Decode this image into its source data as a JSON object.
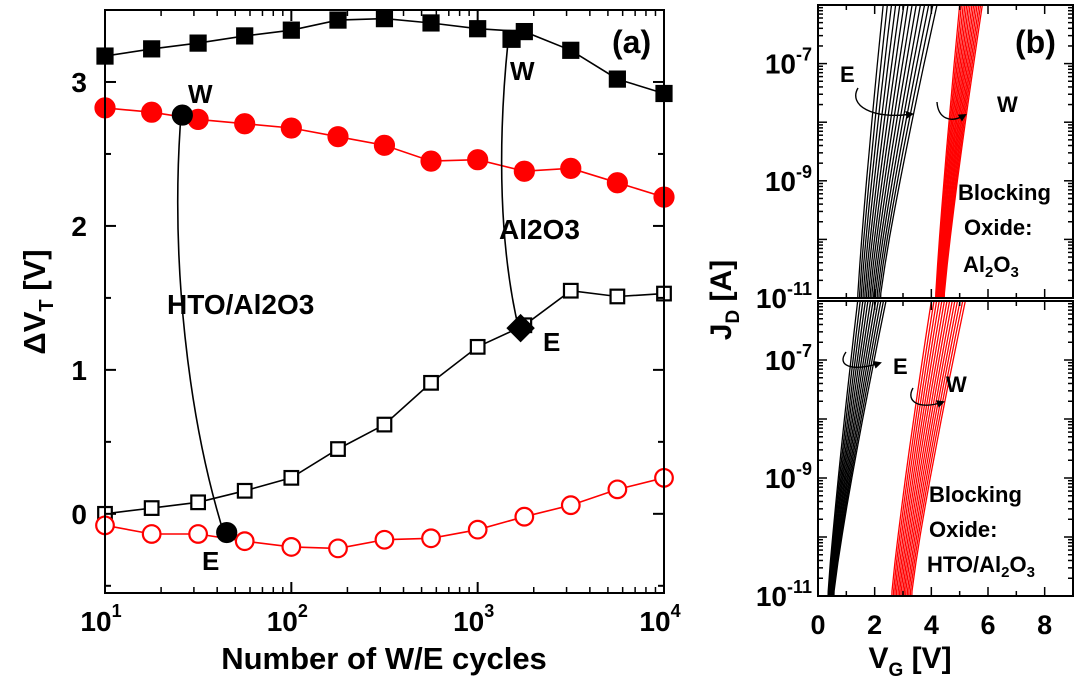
{
  "chart_data": [
    {
      "panel_label": "(a)",
      "type": "line",
      "xscale": "log",
      "xlabel": "Number of W/E cycles",
      "ylabel_base": "ΔV",
      "ylabel_sub": "T",
      "ylabel_unit": " [V]",
      "xlim": [
        10,
        10000
      ],
      "ylim": [
        -0.55,
        3.5
      ],
      "xticks": [
        {
          "value": 10,
          "base": "10",
          "exp": "1"
        },
        {
          "value": 100,
          "base": "10",
          "exp": "2"
        },
        {
          "value": 1000,
          "base": "10",
          "exp": "3"
        },
        {
          "value": 10000,
          "base": "10",
          "exp": "4"
        }
      ],
      "yticks": [
        {
          "value": 0,
          "label": "0"
        },
        {
          "value": 1,
          "label": "1"
        },
        {
          "value": 2,
          "label": "2"
        },
        {
          "value": 3,
          "label": "3"
        }
      ],
      "series": [
        {
          "color": "#000000",
          "marker": "square",
          "filled": true,
          "x": [
            10,
            17.8,
            31.6,
            56.2,
            100,
            178,
            316,
            562,
            1000,
            1780,
            3160,
            5620,
            10000
          ],
          "y": [
            3.18,
            3.23,
            3.27,
            3.32,
            3.36,
            3.43,
            3.44,
            3.41,
            3.37,
            3.35,
            3.22,
            3.02,
            2.92
          ]
        },
        {
          "color": "#ff0000",
          "marker": "circle",
          "filled": true,
          "x": [
            10,
            17.8,
            31.6,
            56.2,
            100,
            178,
            316,
            562,
            1000,
            1780,
            3160,
            5620,
            10000
          ],
          "y": [
            2.82,
            2.79,
            2.74,
            2.71,
            2.68,
            2.62,
            2.56,
            2.45,
            2.46,
            2.38,
            2.4,
            2.3,
            2.2
          ]
        },
        {
          "color": "#000000",
          "marker": "square",
          "filled": false,
          "x": [
            10,
            17.8,
            31.6,
            56.2,
            100,
            178,
            316,
            562,
            1000,
            1780,
            3160,
            5620,
            10000
          ],
          "y": [
            0.0,
            0.04,
            0.08,
            0.16,
            0.25,
            0.45,
            0.62,
            0.91,
            1.16,
            1.31,
            1.55,
            1.51,
            1.53
          ]
        },
        {
          "color": "#ff0000",
          "marker": "circle",
          "filled": false,
          "x": [
            10,
            17.8,
            31.6,
            56.2,
            100,
            178,
            316,
            562,
            1000,
            1780,
            3160,
            5620,
            10000
          ],
          "y": [
            -0.08,
            -0.14,
            -0.14,
            -0.19,
            -0.23,
            -0.24,
            -0.18,
            -0.17,
            -0.11,
            -0.02,
            0.06,
            0.17,
            0.25
          ]
        }
      ],
      "special_points": [
        {
          "x": 26,
          "y": 2.77,
          "marker": "circle",
          "label": "W"
        },
        {
          "x": 45,
          "y": -0.13,
          "marker": "circle",
          "label": "E"
        },
        {
          "x": 1520,
          "y": 3.3,
          "marker": "square",
          "label": "W"
        },
        {
          "x": 1700,
          "y": 1.29,
          "marker": "diamond",
          "label": "E"
        }
      ],
      "annotations": [
        {
          "text": "HTO/Al2O3",
          "x": 55,
          "y": 1.55
        },
        {
          "text": "Al2O3",
          "x": 1800,
          "y": 1.95
        }
      ]
    },
    {
      "panel_label": "(b)",
      "type": "line",
      "yscale": "log",
      "xlabel_base": "V",
      "xlabel_sub": "G",
      "xlabel_unit": " [V]",
      "ylabel_base": "J",
      "ylabel_sub": "D",
      "ylabel_unit": " [A]",
      "xlim": [
        0,
        9
      ],
      "ylim": [
        1e-11,
        1e-06
      ],
      "xticks": [
        {
          "value": 0,
          "label": "0"
        },
        {
          "value": 2,
          "label": "2"
        },
        {
          "value": 4,
          "label": "4"
        },
        {
          "value": 6,
          "label": "6"
        },
        {
          "value": 8,
          "label": "8"
        }
      ],
      "yticks": [
        {
          "value": 1e-11,
          "base": "10",
          "exp": "-11"
        },
        {
          "value": 1e-09,
          "base": "10",
          "exp": "-9"
        },
        {
          "value": 1e-07,
          "base": "10",
          "exp": "-7"
        }
      ],
      "subplots": [
        {
          "blocking_label": [
            "Blocking",
            "Oxide:"
          ],
          "blocking_oxide": {
            "main": "Al",
            "sub1": "2",
            "mid": "O",
            "sub2": "3"
          },
          "erase_label": "E",
          "write_label": "W",
          "erase_curves": {
            "color": "#000000",
            "count": 14,
            "vt_at_1e-11": [
              1.4,
              2.2
            ],
            "vt_at_1e-6": [
              2.3,
              4.2
            ]
          },
          "write_curves": {
            "color": "#ff0000",
            "count": 14,
            "vt_at_1e-11": [
              4.15,
              4.45
            ],
            "vt_at_1e-6": [
              5.0,
              5.8
            ]
          }
        },
        {
          "blocking_label": [
            "Blocking",
            "Oxide:"
          ],
          "blocking_oxide": {
            "main": "HTO/Al",
            "sub1": "2",
            "mid": "O",
            "sub2": "3"
          },
          "erase_label": "E",
          "write_label": "W",
          "erase_curves": {
            "color": "#000000",
            "count": 12,
            "vt_at_1e-11": [
              0.35,
              0.55
            ],
            "vt_at_1e-6": [
              1.4,
              2.4
            ]
          },
          "write_curves": {
            "color": "#ff0000",
            "count": 14,
            "vt_at_1e-11": [
              2.6,
              3.3
            ],
            "vt_at_1e-6": [
              4.0,
              5.2
            ]
          }
        }
      ]
    }
  ]
}
